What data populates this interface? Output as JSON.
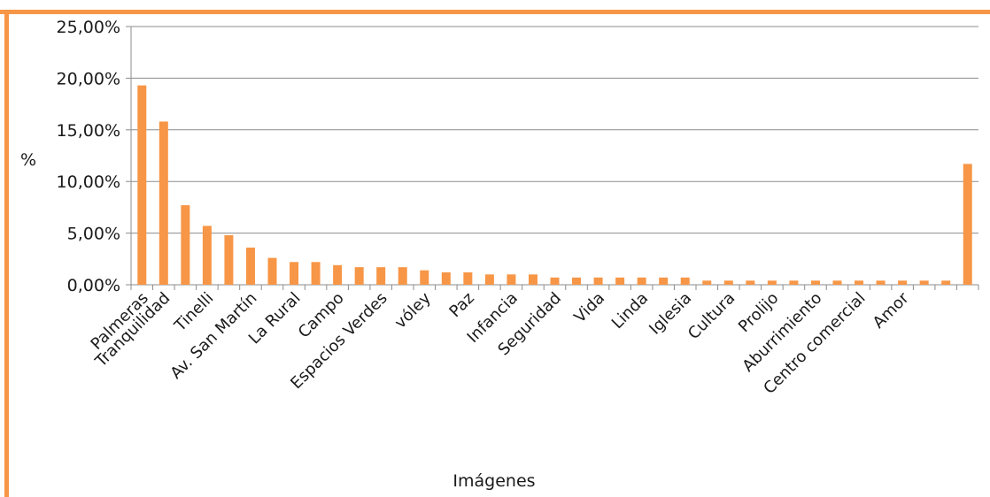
{
  "chart_data": {
    "type": "bar",
    "ylabel": "%",
    "xlabel": "Imágenes",
    "ylim": [
      0,
      25
    ],
    "yticks": [
      {
        "value": 0,
        "label": "0,00%"
      },
      {
        "value": 5,
        "label": "5,00%"
      },
      {
        "value": 10,
        "label": "10,00%"
      },
      {
        "value": 15,
        "label": "15,00%"
      },
      {
        "value": 20,
        "label": "20,00%"
      },
      {
        "value": 25,
        "label": "25,00%"
      }
    ],
    "grid": true,
    "bar_color": "#f79646",
    "frame_color": "#f79646",
    "categories": [
      "Palmeras",
      "Tranquilidad",
      "",
      "Tinelli",
      "",
      "Av. San Martín",
      "",
      "La Rural",
      "",
      "Campo",
      "",
      "Espacios Verdes",
      "",
      "vóley",
      "",
      "Paz",
      "",
      "Infancia",
      "",
      "Seguridad",
      "",
      "Vida",
      "",
      "Linda",
      "",
      "Iglesia",
      "",
      "Cultura",
      "",
      "Prolijo",
      "",
      "Aburrimiento",
      "",
      "Centro comercial",
      "",
      "Amor",
      "",
      "",
      ""
    ],
    "values": [
      19.3,
      15.8,
      7.7,
      5.7,
      4.8,
      3.6,
      2.6,
      2.2,
      2.2,
      1.9,
      1.7,
      1.7,
      1.7,
      1.4,
      1.2,
      1.2,
      1.0,
      1.0,
      1.0,
      0.7,
      0.7,
      0.7,
      0.7,
      0.7,
      0.7,
      0.7,
      0.4,
      0.4,
      0.4,
      0.4,
      0.4,
      0.4,
      0.4,
      0.4,
      0.4,
      0.4,
      0.4,
      0.4,
      11.7
    ]
  }
}
